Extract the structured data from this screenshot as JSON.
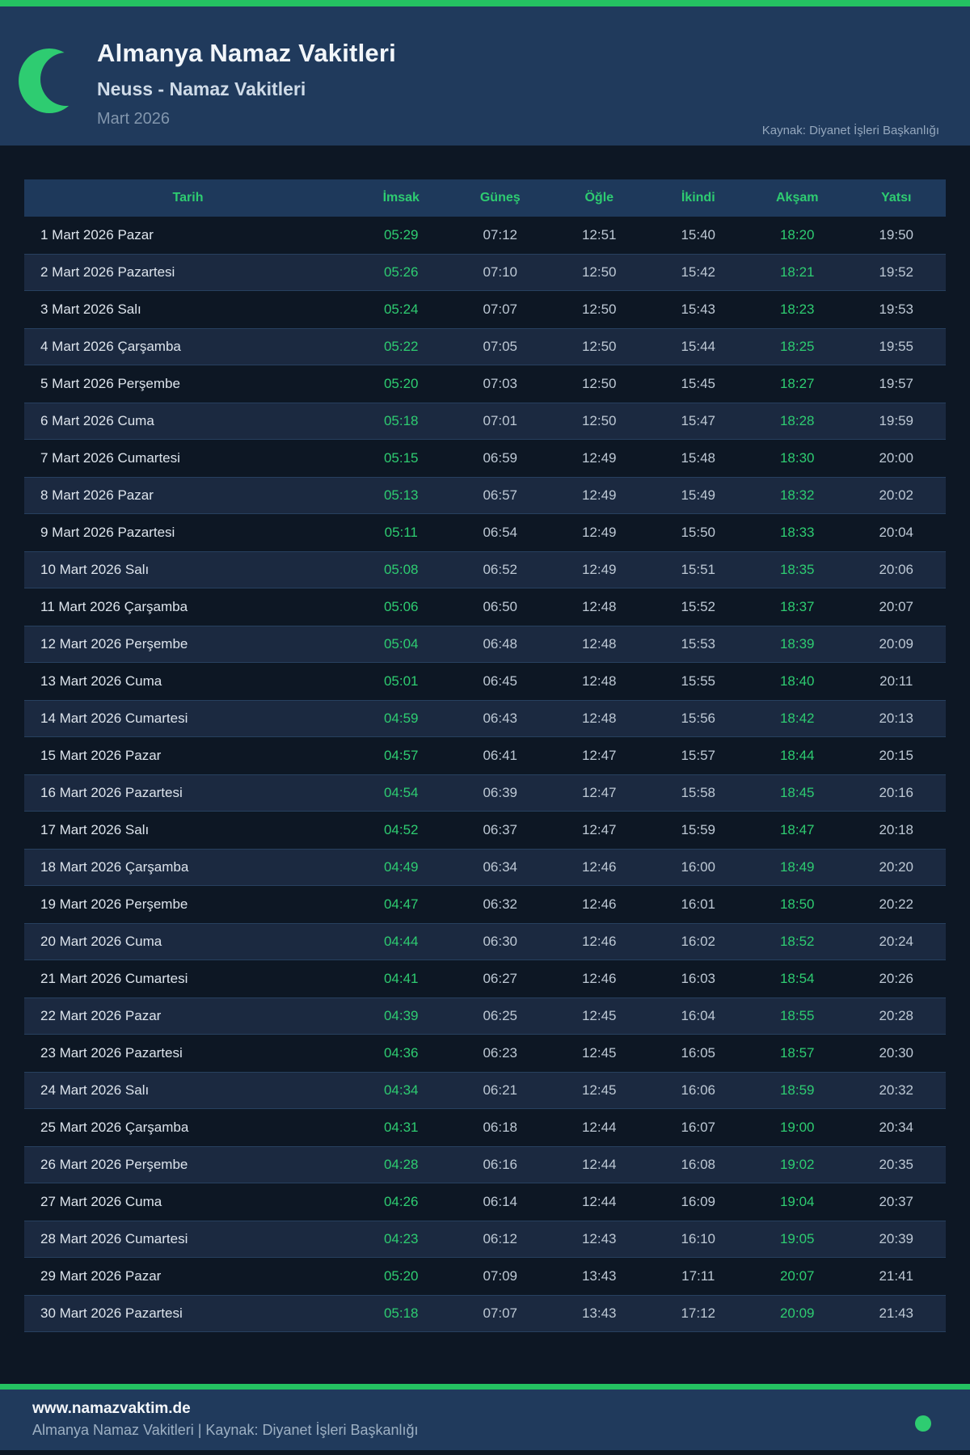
{
  "header": {
    "title": "Almanya Namaz Vakitleri",
    "subtitle": "Neuss - Namaz Vakitleri",
    "period": "Mart 2026",
    "source": "Kaynak: Diyanet İşleri Başkanlığı",
    "icon": "crescent-moon"
  },
  "colors": {
    "accent_green": "#24c262",
    "time_green": "#2ecc71",
    "header_bg": "#203a5c",
    "page_bg": "#0d1724",
    "alt_row_bg": "#1b2940"
  },
  "table": {
    "columns": [
      "Tarih",
      "İmsak",
      "Güneş",
      "Öğle",
      "İkindi",
      "Akşam",
      "Yatsı"
    ],
    "rows": [
      {
        "date": "1 Mart 2026 Pazar",
        "imsak": "05:29",
        "gunes": "07:12",
        "ogle": "12:51",
        "ikindi": "15:40",
        "aksam": "18:20",
        "yatsi": "19:50"
      },
      {
        "date": "2 Mart 2026 Pazartesi",
        "imsak": "05:26",
        "gunes": "07:10",
        "ogle": "12:50",
        "ikindi": "15:42",
        "aksam": "18:21",
        "yatsi": "19:52"
      },
      {
        "date": "3 Mart 2026 Salı",
        "imsak": "05:24",
        "gunes": "07:07",
        "ogle": "12:50",
        "ikindi": "15:43",
        "aksam": "18:23",
        "yatsi": "19:53"
      },
      {
        "date": "4 Mart 2026 Çarşamba",
        "imsak": "05:22",
        "gunes": "07:05",
        "ogle": "12:50",
        "ikindi": "15:44",
        "aksam": "18:25",
        "yatsi": "19:55"
      },
      {
        "date": "5 Mart 2026 Perşembe",
        "imsak": "05:20",
        "gunes": "07:03",
        "ogle": "12:50",
        "ikindi": "15:45",
        "aksam": "18:27",
        "yatsi": "19:57"
      },
      {
        "date": "6 Mart 2026 Cuma",
        "imsak": "05:18",
        "gunes": "07:01",
        "ogle": "12:50",
        "ikindi": "15:47",
        "aksam": "18:28",
        "yatsi": "19:59"
      },
      {
        "date": "7 Mart 2026 Cumartesi",
        "imsak": "05:15",
        "gunes": "06:59",
        "ogle": "12:49",
        "ikindi": "15:48",
        "aksam": "18:30",
        "yatsi": "20:00"
      },
      {
        "date": "8 Mart 2026 Pazar",
        "imsak": "05:13",
        "gunes": "06:57",
        "ogle": "12:49",
        "ikindi": "15:49",
        "aksam": "18:32",
        "yatsi": "20:02"
      },
      {
        "date": "9 Mart 2026 Pazartesi",
        "imsak": "05:11",
        "gunes": "06:54",
        "ogle": "12:49",
        "ikindi": "15:50",
        "aksam": "18:33",
        "yatsi": "20:04"
      },
      {
        "date": "10 Mart 2026 Salı",
        "imsak": "05:08",
        "gunes": "06:52",
        "ogle": "12:49",
        "ikindi": "15:51",
        "aksam": "18:35",
        "yatsi": "20:06"
      },
      {
        "date": "11 Mart 2026 Çarşamba",
        "imsak": "05:06",
        "gunes": "06:50",
        "ogle": "12:48",
        "ikindi": "15:52",
        "aksam": "18:37",
        "yatsi": "20:07"
      },
      {
        "date": "12 Mart 2026 Perşembe",
        "imsak": "05:04",
        "gunes": "06:48",
        "ogle": "12:48",
        "ikindi": "15:53",
        "aksam": "18:39",
        "yatsi": "20:09"
      },
      {
        "date": "13 Mart 2026 Cuma",
        "imsak": "05:01",
        "gunes": "06:45",
        "ogle": "12:48",
        "ikindi": "15:55",
        "aksam": "18:40",
        "yatsi": "20:11"
      },
      {
        "date": "14 Mart 2026 Cumartesi",
        "imsak": "04:59",
        "gunes": "06:43",
        "ogle": "12:48",
        "ikindi": "15:56",
        "aksam": "18:42",
        "yatsi": "20:13"
      },
      {
        "date": "15 Mart 2026 Pazar",
        "imsak": "04:57",
        "gunes": "06:41",
        "ogle": "12:47",
        "ikindi": "15:57",
        "aksam": "18:44",
        "yatsi": "20:15"
      },
      {
        "date": "16 Mart 2026 Pazartesi",
        "imsak": "04:54",
        "gunes": "06:39",
        "ogle": "12:47",
        "ikindi": "15:58",
        "aksam": "18:45",
        "yatsi": "20:16"
      },
      {
        "date": "17 Mart 2026 Salı",
        "imsak": "04:52",
        "gunes": "06:37",
        "ogle": "12:47",
        "ikindi": "15:59",
        "aksam": "18:47",
        "yatsi": "20:18"
      },
      {
        "date": "18 Mart 2026 Çarşamba",
        "imsak": "04:49",
        "gunes": "06:34",
        "ogle": "12:46",
        "ikindi": "16:00",
        "aksam": "18:49",
        "yatsi": "20:20"
      },
      {
        "date": "19 Mart 2026 Perşembe",
        "imsak": "04:47",
        "gunes": "06:32",
        "ogle": "12:46",
        "ikindi": "16:01",
        "aksam": "18:50",
        "yatsi": "20:22"
      },
      {
        "date": "20 Mart 2026 Cuma",
        "imsak": "04:44",
        "gunes": "06:30",
        "ogle": "12:46",
        "ikindi": "16:02",
        "aksam": "18:52",
        "yatsi": "20:24"
      },
      {
        "date": "21 Mart 2026 Cumartesi",
        "imsak": "04:41",
        "gunes": "06:27",
        "ogle": "12:46",
        "ikindi": "16:03",
        "aksam": "18:54",
        "yatsi": "20:26"
      },
      {
        "date": "22 Mart 2026 Pazar",
        "imsak": "04:39",
        "gunes": "06:25",
        "ogle": "12:45",
        "ikindi": "16:04",
        "aksam": "18:55",
        "yatsi": "20:28"
      },
      {
        "date": "23 Mart 2026 Pazartesi",
        "imsak": "04:36",
        "gunes": "06:23",
        "ogle": "12:45",
        "ikindi": "16:05",
        "aksam": "18:57",
        "yatsi": "20:30"
      },
      {
        "date": "24 Mart 2026 Salı",
        "imsak": "04:34",
        "gunes": "06:21",
        "ogle": "12:45",
        "ikindi": "16:06",
        "aksam": "18:59",
        "yatsi": "20:32"
      },
      {
        "date": "25 Mart 2026 Çarşamba",
        "imsak": "04:31",
        "gunes": "06:18",
        "ogle": "12:44",
        "ikindi": "16:07",
        "aksam": "19:00",
        "yatsi": "20:34"
      },
      {
        "date": "26 Mart 2026 Perşembe",
        "imsak": "04:28",
        "gunes": "06:16",
        "ogle": "12:44",
        "ikindi": "16:08",
        "aksam": "19:02",
        "yatsi": "20:35"
      },
      {
        "date": "27 Mart 2026 Cuma",
        "imsak": "04:26",
        "gunes": "06:14",
        "ogle": "12:44",
        "ikindi": "16:09",
        "aksam": "19:04",
        "yatsi": "20:37"
      },
      {
        "date": "28 Mart 2026 Cumartesi",
        "imsak": "04:23",
        "gunes": "06:12",
        "ogle": "12:43",
        "ikindi": "16:10",
        "aksam": "19:05",
        "yatsi": "20:39"
      },
      {
        "date": "29 Mart 2026 Pazar",
        "imsak": "05:20",
        "gunes": "07:09",
        "ogle": "13:43",
        "ikindi": "17:11",
        "aksam": "20:07",
        "yatsi": "21:41"
      },
      {
        "date": "30 Mart 2026 Pazartesi",
        "imsak": "05:18",
        "gunes": "07:07",
        "ogle": "13:43",
        "ikindi": "17:12",
        "aksam": "20:09",
        "yatsi": "21:43"
      }
    ]
  },
  "footer": {
    "site": "www.namazvaktim.de",
    "tagline": "Almanya Namaz Vakitleri | Kaynak: Diyanet İşleri Başkanlığı"
  }
}
